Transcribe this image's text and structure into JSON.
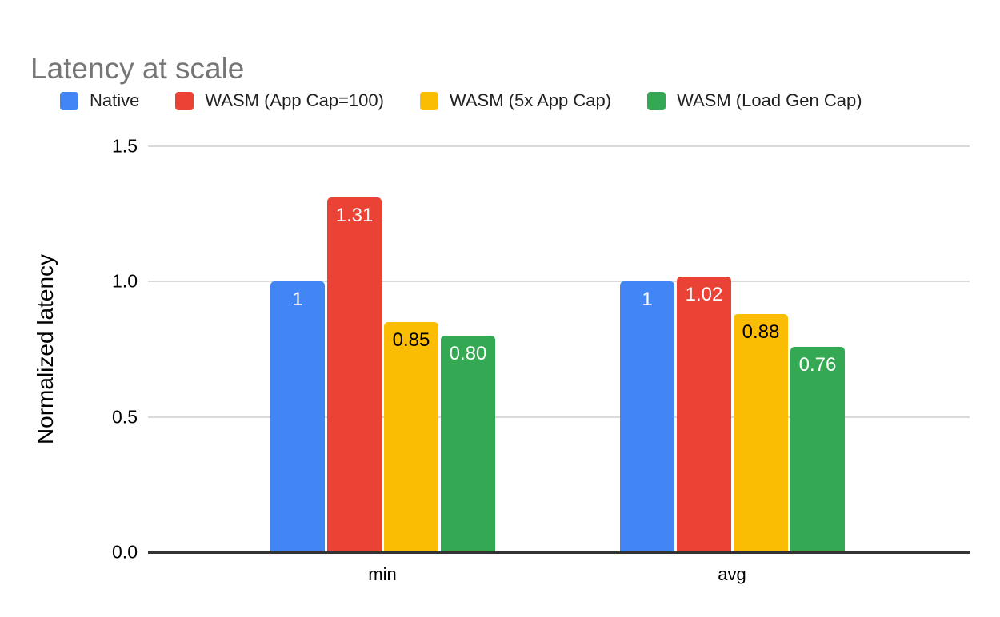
{
  "title": "Latency at scale",
  "chart_data": {
    "type": "bar",
    "title": "Latency at scale",
    "categories": [
      "min",
      "avg"
    ],
    "series": [
      {
        "name": "Native",
        "color": "#4285F4",
        "values": [
          1.0,
          1.0
        ],
        "labels": [
          "1",
          "1"
        ],
        "label_color": "#ffffff"
      },
      {
        "name": "WASM (App Cap=100)",
        "color": "#EA4335",
        "values": [
          1.31,
          1.02
        ],
        "labels": [
          "1.31",
          "1.02"
        ],
        "label_color": "#ffffff"
      },
      {
        "name": "WASM (5x App Cap)",
        "color": "#FBBC04",
        "values": [
          0.85,
          0.88
        ],
        "labels": [
          "0.85",
          "0.88"
        ],
        "label_color": "#000000"
      },
      {
        "name": "WASM (Load Gen Cap)",
        "color": "#34A853",
        "values": [
          0.8,
          0.76
        ],
        "labels": [
          "0.80",
          "0.76"
        ],
        "label_color": "#ffffff"
      }
    ],
    "xlabel": "",
    "ylabel": "Normalized latency",
    "ylim": [
      0,
      1.5
    ],
    "yticks": [
      "0.0",
      "0.5",
      "1.0",
      "1.5"
    ],
    "grid": true,
    "legend_position": "top",
    "colors": {
      "title_text": "#757575",
      "axis_text": "#000000",
      "legend_text": "#212121",
      "gridline": "#d9d9d9",
      "axis_line": "#333333",
      "background": "#ffffff"
    }
  }
}
